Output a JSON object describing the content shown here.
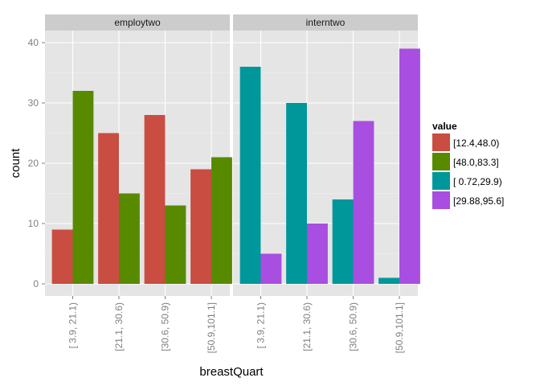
{
  "colors": {
    "panel_background": "#e5e5e5",
    "grid_major": "#ffffff",
    "grid_minor": "#f2f2f2",
    "strip_background": "#cccccc",
    "tick_label": "#7f7f7f"
  },
  "chart_data": {
    "type": "bar",
    "facets": [
      "employtwo",
      "interntwo"
    ],
    "categories": [
      "[ 3.9, 21.1)",
      "[21.1, 30.6)",
      "[30.6, 50.9)",
      "[50.9,101.1]"
    ],
    "series": [
      {
        "name": "[12.4,48.0)",
        "color": "#c94d41",
        "facet": "employtwo",
        "values": [
          9,
          25,
          28,
          19
        ]
      },
      {
        "name": "[48.0,83.3]",
        "color": "#588a00",
        "facet": "employtwo",
        "values": [
          32,
          15,
          13,
          21
        ]
      },
      {
        "name": "[ 0.72,29.9)",
        "color": "#00979a",
        "facet": "interntwo",
        "values": [
          36,
          30,
          14,
          1
        ]
      },
      {
        "name": "[29.88,95.6]",
        "color": "#a84ee0",
        "facet": "interntwo",
        "values": [
          5,
          10,
          27,
          39
        ]
      }
    ],
    "xlabel": "breastQuart",
    "ylabel": "count",
    "yticks": [
      0,
      10,
      20,
      30,
      40
    ],
    "ylim": [
      -2,
      42
    ],
    "grid": true,
    "legend_title": "value",
    "legend_position": "right"
  }
}
